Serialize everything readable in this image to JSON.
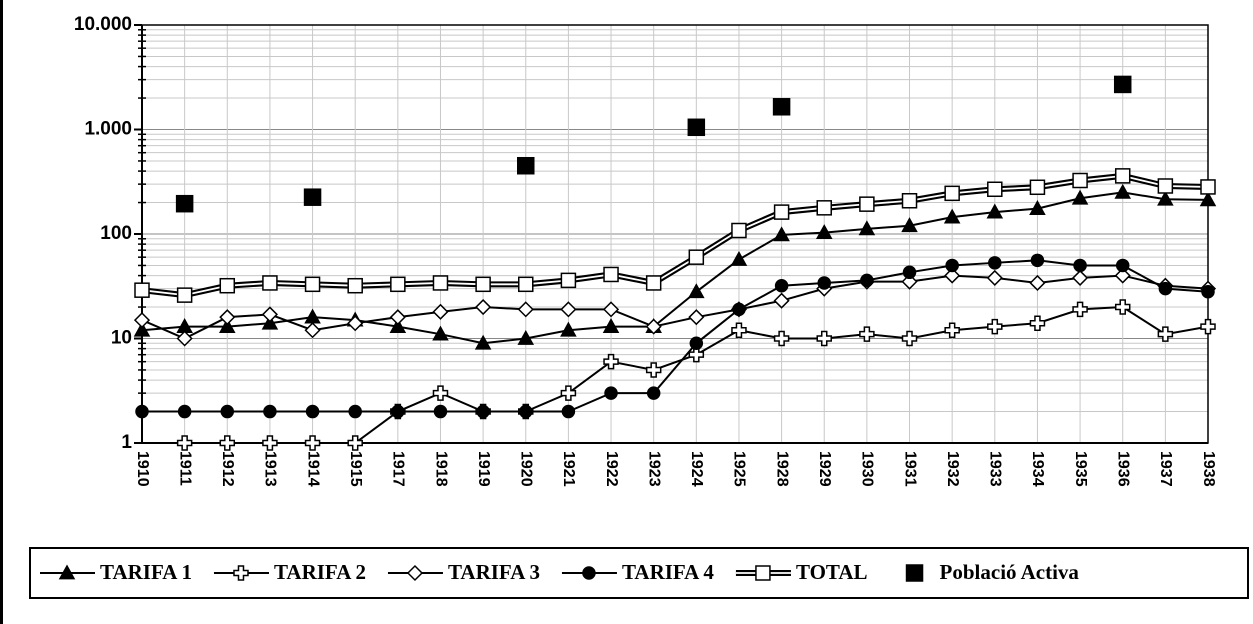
{
  "chart_data": {
    "type": "line",
    "log_scale": true,
    "grid": true,
    "minor_grid": true,
    "legend": "bottom",
    "categories": [
      "1910",
      "1911",
      "1912",
      "1913",
      "1914",
      "1915",
      "1917",
      "1918",
      "1919",
      "1920",
      "1921",
      "1922",
      "1923",
      "1924",
      "1925",
      "1928",
      "1929",
      "1930",
      "1931",
      "1932",
      "1933",
      "1934",
      "1935",
      "1936",
      "1937",
      "1938"
    ],
    "ylim": [
      1,
      10000
    ],
    "yticks": [
      1,
      10,
      100,
      {
        "value": 1000,
        "label": "1.000"
      },
      {
        "value": 10000,
        "label": "10.000"
      }
    ],
    "series": [
      {
        "name": "TARIFA 1",
        "color": "#000000",
        "marker": "triangle",
        "line": true,
        "values": [
          12,
          13,
          13,
          14,
          16,
          15,
          13,
          11,
          9,
          10,
          12,
          13,
          13,
          28,
          57,
          98,
          103,
          112,
          120,
          145,
          162,
          175,
          220,
          250,
          215,
          212
        ]
      },
      {
        "name": "TARIFA 2",
        "color": "#000000",
        "marker": "cross",
        "line": true,
        "values": [
          null,
          1,
          1,
          1,
          1,
          1,
          2,
          3,
          2,
          2,
          3,
          6,
          5,
          7,
          12,
          10,
          10,
          11,
          10,
          12,
          13,
          14,
          19,
          20,
          11,
          13
        ]
      },
      {
        "name": "TARIFA 3",
        "color": "#000000",
        "marker": "diamond",
        "line": true,
        "values": [
          15,
          10,
          16,
          17,
          12,
          14,
          16,
          18,
          20,
          19,
          19,
          19,
          13,
          16,
          19,
          23,
          30,
          35,
          35,
          40,
          38,
          34,
          38,
          40,
          32,
          30
        ]
      },
      {
        "name": "TARIFA 4",
        "color": "#000000",
        "marker": "circle",
        "line": true,
        "values": [
          2,
          2,
          2,
          2,
          2,
          2,
          2,
          2,
          2,
          2,
          2,
          3,
          3,
          9,
          19,
          32,
          34,
          36,
          43,
          50,
          53,
          56,
          50,
          50,
          30,
          28
        ]
      },
      {
        "name": "TOTAL",
        "color": "#000000",
        "marker": "square",
        "line": true,
        "double": true,
        "values": [
          29,
          26,
          32,
          34,
          33,
          32,
          33,
          34,
          33,
          33,
          36,
          41,
          34,
          60,
          108,
          162,
          178,
          193,
          208,
          245,
          268,
          280,
          325,
          360,
          288,
          282
        ]
      },
      {
        "name": "Població Activa",
        "color": "#000000",
        "marker": "square-filled",
        "line": false,
        "values": [
          null,
          195,
          null,
          null,
          225,
          null,
          null,
          null,
          null,
          450,
          null,
          null,
          null,
          1050,
          null,
          1650,
          null,
          null,
          null,
          null,
          null,
          null,
          null,
          2700,
          null,
          null
        ]
      }
    ]
  }
}
